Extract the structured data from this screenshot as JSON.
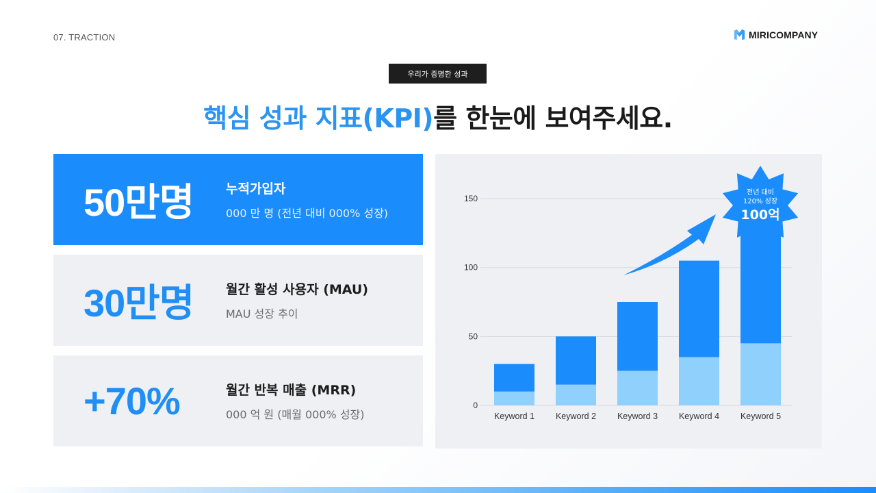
{
  "header": {
    "section_label": "07. TRACTION",
    "logo_text": "MIRICOMPANY",
    "logo_icon": "m-logo-icon"
  },
  "eyebrow": "우리가 증명한 성과",
  "headline": {
    "accent": "핵심 성과 지표(KPI)",
    "rest": "를 한눈에 보여주세요."
  },
  "kpis": [
    {
      "value": "50만명",
      "title": "누적가입자",
      "subtitle": "000 만 명 (전년 대비 000% 성장)",
      "highlighted": true
    },
    {
      "value": "30만명",
      "title": "월간 활성 사용자 (MAU)",
      "subtitle": "MAU 성장 추이",
      "highlighted": false
    },
    {
      "value": "+70%",
      "title": "월간 반복 매출 (MRR)",
      "subtitle": "000 억 원 (매월 000% 성장)",
      "highlighted": false
    }
  ],
  "colors": {
    "accent": "#1a8cfb",
    "bar_dark": "#1a8cfb",
    "bar_light": "#90d0fd",
    "card_bg": "#eef0f4",
    "text_dark": "#1d1d1d"
  },
  "chart_data": {
    "type": "bar",
    "stacked": true,
    "title": "",
    "xlabel": "",
    "ylabel": "",
    "categories": [
      "Keyword 1",
      "Keyword 2",
      "Keyword 3",
      "Keyword 4",
      "Keyword 5"
    ],
    "series": [
      {
        "name": "base",
        "color": "#90d0fd",
        "values": [
          10,
          15,
          25,
          35,
          45
        ]
      },
      {
        "name": "top",
        "color": "#1a8cfb",
        "values": [
          20,
          35,
          50,
          70,
          115
        ]
      }
    ],
    "totals": [
      30,
      50,
      75,
      105,
      160
    ],
    "ylim": [
      0,
      150
    ],
    "yticks": [
      0,
      50,
      100,
      150
    ],
    "grid": true,
    "legend": "none",
    "annotations": [
      {
        "type": "starburst",
        "target": "Keyword 5",
        "line1": "전년 대비",
        "line2": "120% 성장",
        "value": "100억"
      },
      {
        "type": "arrow",
        "from": "Keyword 3",
        "to": "Keyword 5",
        "direction": "up-right"
      }
    ]
  }
}
